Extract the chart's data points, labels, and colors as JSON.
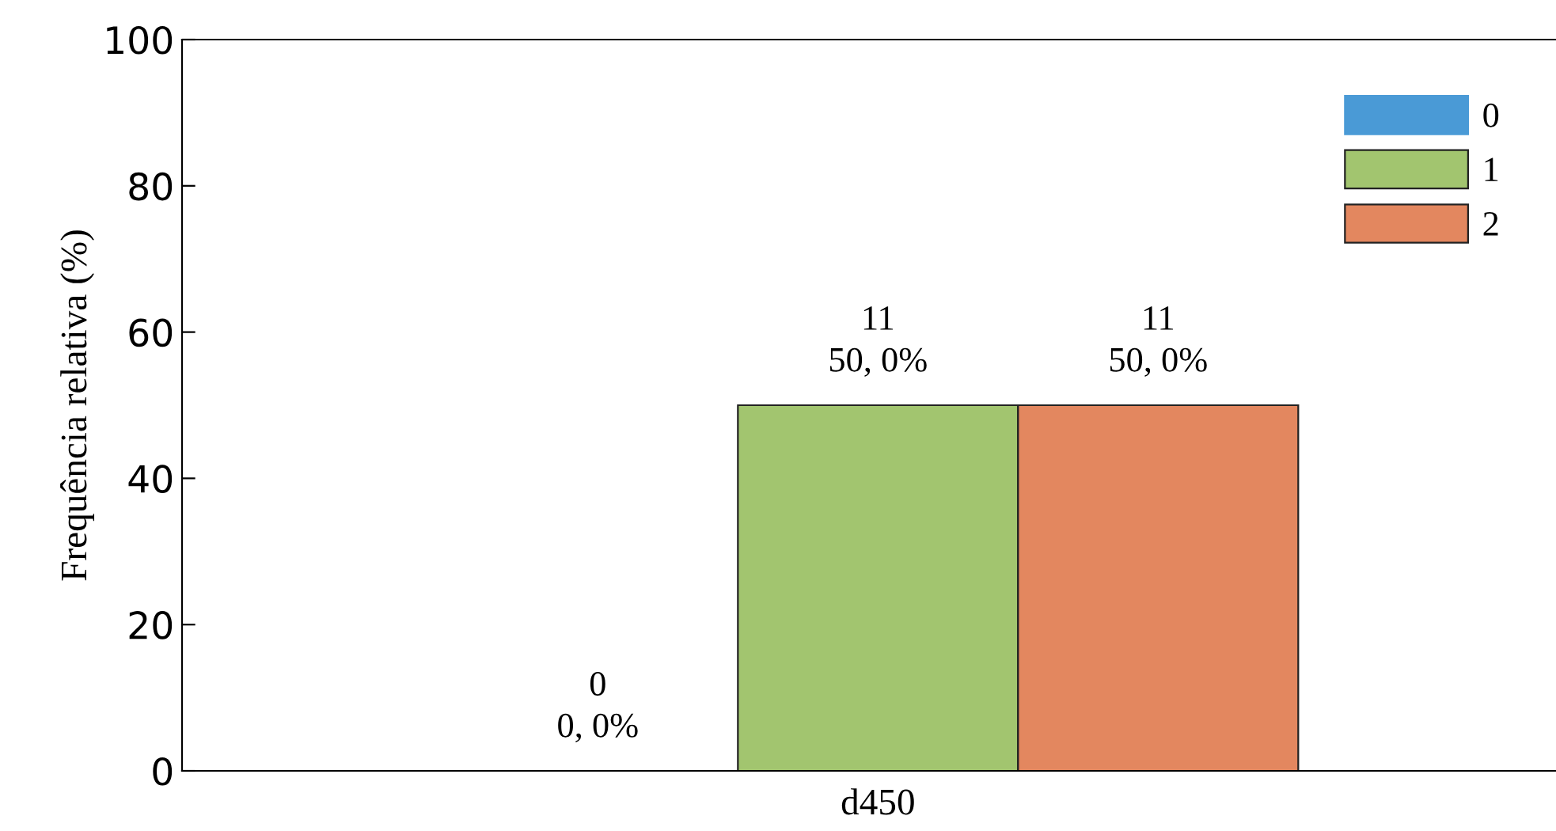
{
  "chart_data": {
    "type": "bar",
    "ylabel": "Frequência relativa (%)",
    "categories": [
      "d450"
    ],
    "series": [
      {
        "name": "0",
        "color": "#4a9ad6",
        "values": [
          0
        ],
        "value_labels": [
          "0\n0, 0%"
        ]
      },
      {
        "name": "1",
        "color": "#a2c56f",
        "values": [
          50
        ],
        "value_labels": [
          "11\n50, 0%"
        ]
      },
      {
        "name": "2",
        "color": "#e3875f",
        "values": [
          50
        ],
        "value_labels": [
          "11\n50, 0%"
        ]
      }
    ],
    "ylim": [
      0,
      100
    ],
    "yticks": [
      0,
      20,
      40,
      60,
      80,
      100
    ],
    "grid": false,
    "legend": "top right"
  }
}
